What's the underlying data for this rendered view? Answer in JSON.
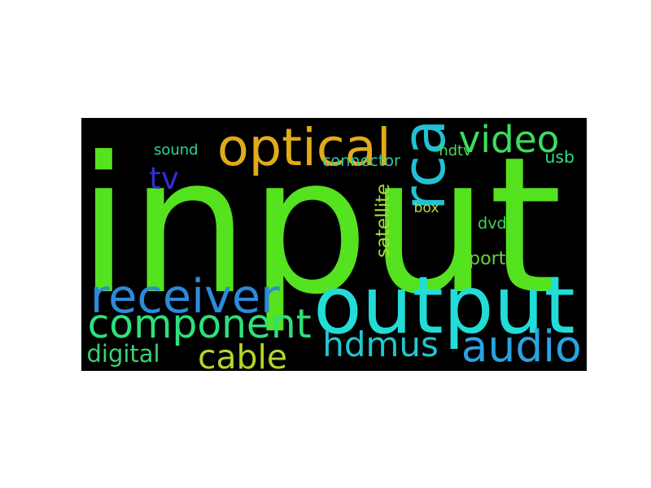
{
  "words": [
    {
      "text": "input",
      "color": "#55e21f",
      "vertical": false
    },
    {
      "text": "output",
      "color": "#22dcd8",
      "vertical": false
    },
    {
      "text": "optical",
      "color": "#e0ab1b",
      "vertical": false
    },
    {
      "text": "rca",
      "color": "#22c1d4",
      "vertical": true
    },
    {
      "text": "receiver",
      "color": "#2d8ad9",
      "vertical": false
    },
    {
      "text": "component",
      "color": "#2de07c",
      "vertical": false
    },
    {
      "text": "hdmus",
      "color": "#22c6d0",
      "vertical": false
    },
    {
      "text": "audio",
      "color": "#2aa3e0",
      "vertical": false
    },
    {
      "text": "cable",
      "color": "#b2d62c",
      "vertical": false
    },
    {
      "text": "video",
      "color": "#3bde5e",
      "vertical": false
    },
    {
      "text": "tv",
      "color": "#2f2fd8",
      "vertical": false
    },
    {
      "text": "sound",
      "color": "#2ad596",
      "vertical": false
    },
    {
      "text": "connector",
      "color": "#2cc99e",
      "vertical": false
    },
    {
      "text": "hdtv",
      "color": "#46db56",
      "vertical": false
    },
    {
      "text": "usb",
      "color": "#3bd88a",
      "vertical": false
    },
    {
      "text": "satellite",
      "color": "#a8d836",
      "vertical": true
    },
    {
      "text": "box",
      "color": "#b2d838",
      "vertical": false
    },
    {
      "text": "dvd",
      "color": "#3fd35e",
      "vertical": false
    },
    {
      "text": "port",
      "color": "#62d43d",
      "vertical": false
    },
    {
      "text": "digital",
      "color": "#38d470",
      "vertical": false
    }
  ]
}
